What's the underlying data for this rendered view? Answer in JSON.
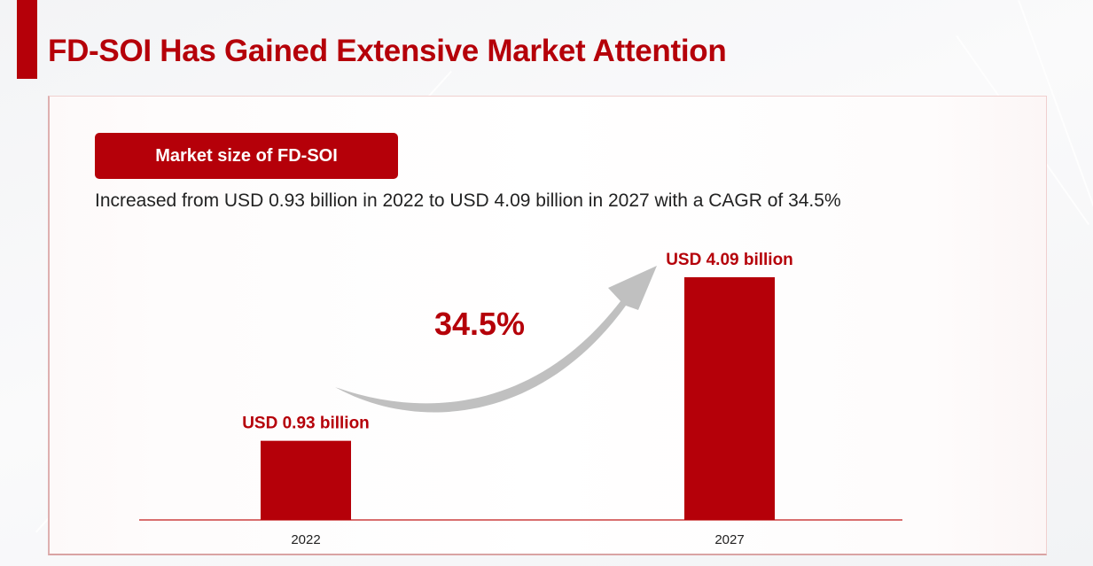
{
  "header": {
    "title": "FD-SOI Has Gained Extensive Market Attention"
  },
  "section": {
    "pill_label": "Market size of FD-SOI",
    "description": "Increased from USD 0.93 billion in 2022 to USD 4.09 billion in 2027 with a CAGR of 34.5%"
  },
  "colors": {
    "accent": "#b50009",
    "arrow": "#c0c0c0",
    "baseline": "#d96f6f"
  },
  "chart_data": {
    "type": "bar",
    "title": "Market size of FD-SOI",
    "xlabel": "",
    "ylabel": "",
    "categories": [
      "2022",
      "2027"
    ],
    "values": [
      0.93,
      4.09
    ],
    "unit": "USD billion",
    "data_labels": [
      "USD 0.93 billion",
      "USD 4.09 billion"
    ],
    "grid": false,
    "legend": "none",
    "annotations": [
      {
        "text": "34.5%",
        "meaning": "CAGR",
        "arrow": "curved arrow from 2022 bar to 2027 bar"
      }
    ]
  }
}
